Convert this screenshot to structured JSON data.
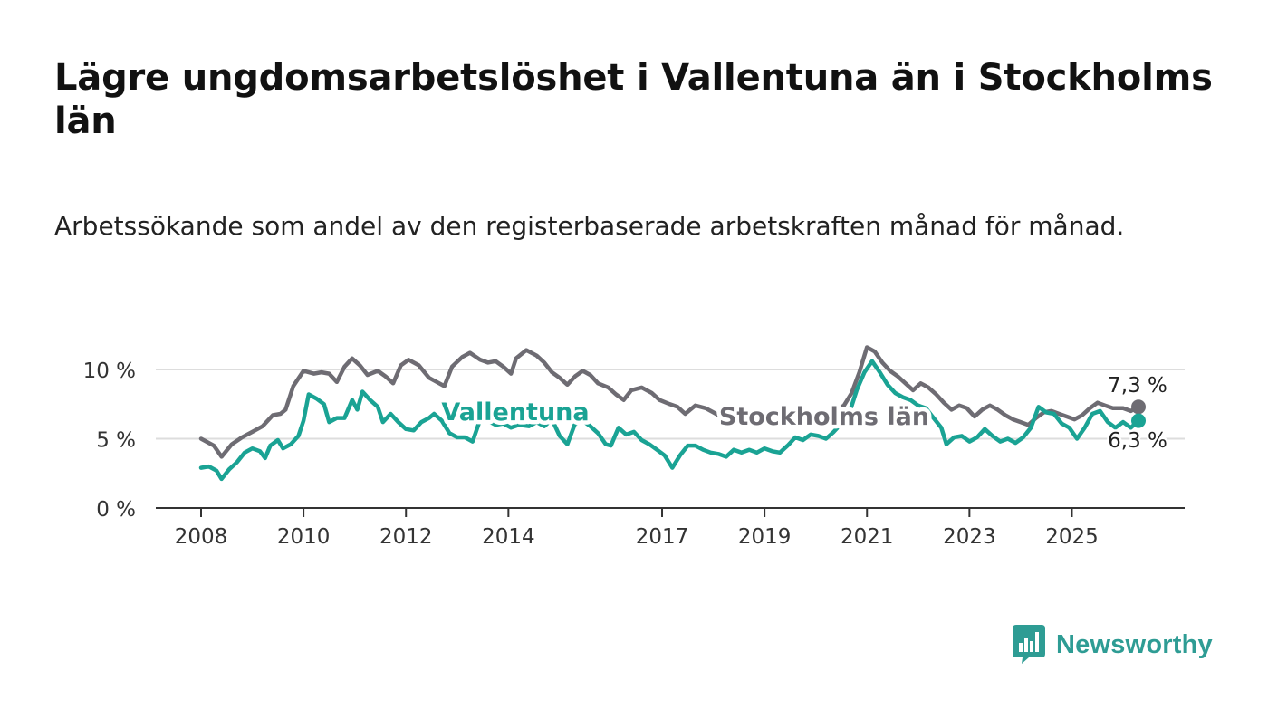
{
  "title": "Lägre ungdomsarbetslöshet i Vallentuna än i Stockholms län",
  "subtitle": "Arbetssökande som andel av den registerbaserade arbetskraften månad för månad.",
  "brand": {
    "name": "Newsworthy",
    "color": "#2e9c94",
    "icon": "newsworthy-logo-icon"
  },
  "colors": {
    "vallentuna": "#1aa394",
    "stockholm": "#6e6c73",
    "grid": "#dddddd",
    "axis": "#333333"
  },
  "chart_data": {
    "type": "line",
    "xlabel": "",
    "ylabel": "",
    "ylim": [
      0,
      13
    ],
    "y_ticks": [
      0,
      5,
      10
    ],
    "y_tick_labels": [
      "0 %",
      "5 %",
      "10 %"
    ],
    "x_ticks": [
      2008,
      2010,
      2012,
      2014,
      2017,
      2019,
      2021,
      2023,
      2025
    ],
    "x_tick_labels": [
      "2008",
      "2010",
      "2012",
      "2014",
      "2017",
      "2019",
      "2021",
      "2023",
      "2025"
    ],
    "grid": "horizontal",
    "legend": "direct labels",
    "series": [
      {
        "name": "Stockholms län",
        "end_label": "7,3 %",
        "points": [
          [
            2008.0,
            5.0
          ],
          [
            2008.25,
            4.5
          ],
          [
            2008.4,
            3.7
          ],
          [
            2008.6,
            4.6
          ],
          [
            2008.8,
            5.1
          ],
          [
            2009.0,
            5.5
          ],
          [
            2009.2,
            5.9
          ],
          [
            2009.4,
            6.7
          ],
          [
            2009.55,
            6.8
          ],
          [
            2009.65,
            7.1
          ],
          [
            2009.8,
            8.8
          ],
          [
            2010.0,
            9.9
          ],
          [
            2010.2,
            9.7
          ],
          [
            2010.35,
            9.8
          ],
          [
            2010.5,
            9.7
          ],
          [
            2010.65,
            9.1
          ],
          [
            2010.8,
            10.2
          ],
          [
            2010.95,
            10.8
          ],
          [
            2011.1,
            10.3
          ],
          [
            2011.25,
            9.6
          ],
          [
            2011.45,
            9.9
          ],
          [
            2011.6,
            9.5
          ],
          [
            2011.75,
            9.0
          ],
          [
            2011.9,
            10.3
          ],
          [
            2012.05,
            10.7
          ],
          [
            2012.25,
            10.3
          ],
          [
            2012.45,
            9.4
          ],
          [
            2012.6,
            9.1
          ],
          [
            2012.75,
            8.8
          ],
          [
            2012.9,
            10.2
          ],
          [
            2013.1,
            10.9
          ],
          [
            2013.25,
            11.2
          ],
          [
            2013.45,
            10.7
          ],
          [
            2013.6,
            10.5
          ],
          [
            2013.75,
            10.6
          ],
          [
            2013.9,
            10.2
          ],
          [
            2014.05,
            9.7
          ],
          [
            2014.15,
            10.8
          ],
          [
            2014.35,
            11.4
          ],
          [
            2014.55,
            11.0
          ],
          [
            2014.7,
            10.5
          ],
          [
            2014.85,
            9.8
          ],
          [
            2015.0,
            9.4
          ],
          [
            2015.15,
            8.9
          ],
          [
            2015.3,
            9.5
          ],
          [
            2015.45,
            9.9
          ],
          [
            2015.6,
            9.6
          ],
          [
            2015.75,
            9.0
          ],
          [
            2015.95,
            8.7
          ],
          [
            2016.1,
            8.2
          ],
          [
            2016.25,
            7.8
          ],
          [
            2016.4,
            8.5
          ],
          [
            2016.6,
            8.7
          ],
          [
            2016.8,
            8.3
          ],
          [
            2016.95,
            7.8
          ],
          [
            2017.15,
            7.5
          ],
          [
            2017.3,
            7.3
          ],
          [
            2017.45,
            6.8
          ],
          [
            2017.65,
            7.4
          ],
          [
            2017.85,
            7.2
          ],
          [
            2018.0,
            6.9
          ],
          [
            2018.2,
            6.5
          ],
          [
            2018.35,
            6.6
          ],
          [
            2018.55,
            6.2
          ],
          [
            2018.7,
            6.7
          ],
          [
            2018.85,
            7.0
          ],
          [
            2019.0,
            6.6
          ],
          [
            2019.2,
            6.3
          ],
          [
            2019.35,
            6.1
          ],
          [
            2019.55,
            6.2
          ],
          [
            2019.7,
            6.0
          ],
          [
            2019.85,
            6.5
          ],
          [
            2020.0,
            6.6
          ],
          [
            2020.2,
            6.9
          ],
          [
            2020.4,
            7.1
          ],
          [
            2020.55,
            7.4
          ],
          [
            2020.7,
            8.3
          ],
          [
            2020.85,
            9.8
          ],
          [
            2021.0,
            11.6
          ],
          [
            2021.15,
            11.3
          ],
          [
            2021.3,
            10.5
          ],
          [
            2021.45,
            9.9
          ],
          [
            2021.6,
            9.5
          ],
          [
            2021.75,
            9.0
          ],
          [
            2021.9,
            8.5
          ],
          [
            2022.05,
            9.0
          ],
          [
            2022.2,
            8.7
          ],
          [
            2022.35,
            8.2
          ],
          [
            2022.5,
            7.6
          ],
          [
            2022.65,
            7.1
          ],
          [
            2022.8,
            7.4
          ],
          [
            2022.95,
            7.2
          ],
          [
            2023.1,
            6.6
          ],
          [
            2023.25,
            7.1
          ],
          [
            2023.4,
            7.4
          ],
          [
            2023.55,
            7.1
          ],
          [
            2023.7,
            6.7
          ],
          [
            2023.85,
            6.4
          ],
          [
            2024.0,
            6.2
          ],
          [
            2024.15,
            6.0
          ],
          [
            2024.3,
            6.5
          ],
          [
            2024.45,
            6.9
          ],
          [
            2024.6,
            7.0
          ],
          [
            2024.75,
            6.8
          ],
          [
            2024.9,
            6.6
          ],
          [
            2025.05,
            6.4
          ],
          [
            2025.2,
            6.7
          ],
          [
            2025.35,
            7.2
          ],
          [
            2025.5,
            7.6
          ],
          [
            2025.65,
            7.4
          ],
          [
            2025.8,
            7.2
          ],
          [
            2026.0,
            7.2
          ],
          [
            2026.15,
            7.0
          ],
          [
            2026.3,
            7.3
          ]
        ]
      },
      {
        "name": "Vallentuna",
        "end_label": "6,3 %",
        "points": [
          [
            2008.0,
            2.9
          ],
          [
            2008.15,
            3.0
          ],
          [
            2008.3,
            2.7
          ],
          [
            2008.4,
            2.1
          ],
          [
            2008.55,
            2.8
          ],
          [
            2008.7,
            3.3
          ],
          [
            2008.85,
            4.0
          ],
          [
            2009.0,
            4.3
          ],
          [
            2009.15,
            4.1
          ],
          [
            2009.25,
            3.6
          ],
          [
            2009.35,
            4.5
          ],
          [
            2009.5,
            4.9
          ],
          [
            2009.6,
            4.3
          ],
          [
            2009.75,
            4.6
          ],
          [
            2009.9,
            5.2
          ],
          [
            2010.0,
            6.3
          ],
          [
            2010.1,
            8.2
          ],
          [
            2010.25,
            7.9
          ],
          [
            2010.4,
            7.5
          ],
          [
            2010.5,
            6.2
          ],
          [
            2010.65,
            6.5
          ],
          [
            2010.8,
            6.5
          ],
          [
            2010.95,
            7.8
          ],
          [
            2011.05,
            7.1
          ],
          [
            2011.15,
            8.4
          ],
          [
            2011.3,
            7.8
          ],
          [
            2011.45,
            7.3
          ],
          [
            2011.55,
            6.2
          ],
          [
            2011.7,
            6.8
          ],
          [
            2011.85,
            6.2
          ],
          [
            2012.0,
            5.7
          ],
          [
            2012.15,
            5.6
          ],
          [
            2012.3,
            6.2
          ],
          [
            2012.45,
            6.5
          ],
          [
            2012.55,
            6.8
          ],
          [
            2012.7,
            6.3
          ],
          [
            2012.85,
            5.4
          ],
          [
            2013.0,
            5.1
          ],
          [
            2013.15,
            5.1
          ],
          [
            2013.3,
            4.8
          ],
          [
            2013.45,
            6.4
          ],
          [
            2013.6,
            6.3
          ],
          [
            2013.75,
            6.0
          ],
          [
            2013.9,
            6.1
          ],
          [
            2014.05,
            5.8
          ],
          [
            2014.2,
            6.0
          ],
          [
            2014.4,
            5.9
          ],
          [
            2014.55,
            6.2
          ],
          [
            2014.7,
            5.9
          ],
          [
            2014.85,
            6.4
          ],
          [
            2015.0,
            5.2
          ],
          [
            2015.15,
            4.6
          ],
          [
            2015.3,
            6.1
          ],
          [
            2015.45,
            6.3
          ],
          [
            2015.6,
            5.9
          ],
          [
            2015.75,
            5.4
          ],
          [
            2015.9,
            4.6
          ],
          [
            2016.0,
            4.5
          ],
          [
            2016.15,
            5.8
          ],
          [
            2016.3,
            5.3
          ],
          [
            2016.45,
            5.5
          ],
          [
            2016.6,
            4.9
          ],
          [
            2016.75,
            4.6
          ],
          [
            2016.9,
            4.2
          ],
          [
            2017.05,
            3.8
          ],
          [
            2017.2,
            2.9
          ],
          [
            2017.35,
            3.8
          ],
          [
            2017.5,
            4.5
          ],
          [
            2017.65,
            4.5
          ],
          [
            2017.8,
            4.2
          ],
          [
            2017.95,
            4.0
          ],
          [
            2018.1,
            3.9
          ],
          [
            2018.25,
            3.7
          ],
          [
            2018.4,
            4.2
          ],
          [
            2018.55,
            4.0
          ],
          [
            2018.7,
            4.2
          ],
          [
            2018.85,
            4.0
          ],
          [
            2019.0,
            4.3
          ],
          [
            2019.15,
            4.1
          ],
          [
            2019.3,
            4.0
          ],
          [
            2019.45,
            4.5
          ],
          [
            2019.6,
            5.1
          ],
          [
            2019.75,
            4.9
          ],
          [
            2019.9,
            5.3
          ],
          [
            2020.05,
            5.2
          ],
          [
            2020.2,
            5.0
          ],
          [
            2020.35,
            5.5
          ],
          [
            2020.5,
            6.1
          ],
          [
            2020.65,
            6.8
          ],
          [
            2020.8,
            8.5
          ],
          [
            2020.95,
            9.8
          ],
          [
            2021.1,
            10.6
          ],
          [
            2021.25,
            9.8
          ],
          [
            2021.4,
            8.9
          ],
          [
            2021.55,
            8.3
          ],
          [
            2021.7,
            8.0
          ],
          [
            2021.85,
            7.8
          ],
          [
            2022.0,
            7.4
          ],
          [
            2022.15,
            7.2
          ],
          [
            2022.3,
            6.5
          ],
          [
            2022.45,
            5.8
          ],
          [
            2022.55,
            4.6
          ],
          [
            2022.7,
            5.1
          ],
          [
            2022.85,
            5.2
          ],
          [
            2023.0,
            4.8
          ],
          [
            2023.15,
            5.1
          ],
          [
            2023.3,
            5.7
          ],
          [
            2023.45,
            5.2
          ],
          [
            2023.6,
            4.8
          ],
          [
            2023.75,
            5.0
          ],
          [
            2023.9,
            4.7
          ],
          [
            2024.05,
            5.1
          ],
          [
            2024.2,
            5.8
          ],
          [
            2024.35,
            7.3
          ],
          [
            2024.5,
            6.9
          ],
          [
            2024.65,
            6.8
          ],
          [
            2024.8,
            6.1
          ],
          [
            2024.95,
            5.8
          ],
          [
            2025.1,
            5.0
          ],
          [
            2025.25,
            5.8
          ],
          [
            2025.4,
            6.8
          ],
          [
            2025.55,
            7.0
          ],
          [
            2025.7,
            6.2
          ],
          [
            2025.85,
            5.8
          ],
          [
            2026.0,
            6.2
          ],
          [
            2026.15,
            5.8
          ],
          [
            2026.3,
            6.3
          ]
        ]
      }
    ]
  }
}
